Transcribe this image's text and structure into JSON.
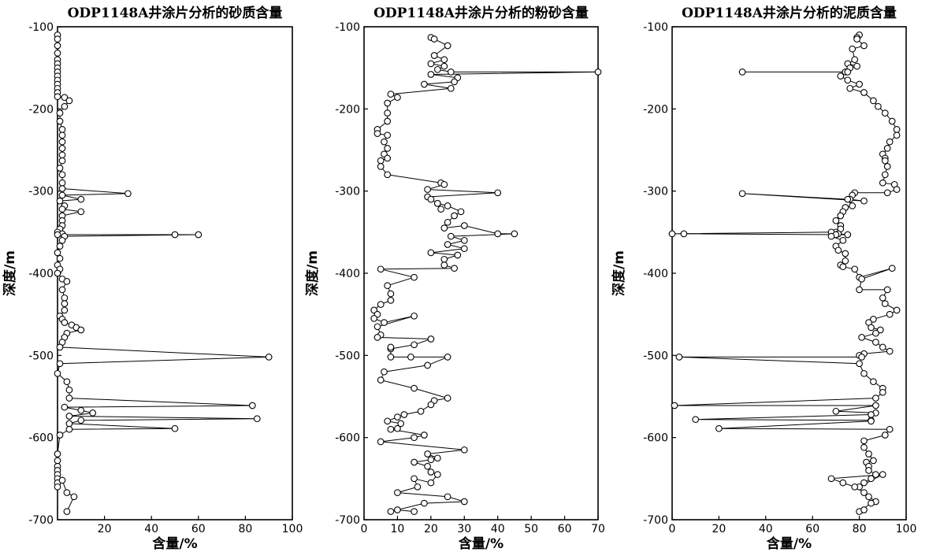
{
  "chart_data": [
    {
      "type": "line",
      "title": "ODP1148A井涂片分析的砂质含量",
      "xlabel": "含量/%",
      "ylabel": "深度/m",
      "xlim": [
        0,
        100
      ],
      "ylim": [
        -100,
        -700
      ],
      "xticks": [
        20,
        40,
        60,
        80,
        100
      ],
      "yticks": [
        -100,
        -200,
        -300,
        -400,
        -500,
        -600,
        -700
      ],
      "grid": false,
      "series": [
        {
          "x": [
            0,
            0,
            0,
            0,
            0,
            0,
            0,
            0,
            0,
            0,
            0,
            0,
            0,
            0,
            3,
            5,
            3,
            1,
            1,
            2,
            2,
            2,
            2,
            2,
            2,
            1,
            2,
            2,
            2,
            30,
            2,
            10,
            1,
            3,
            2,
            10,
            2,
            2,
            2,
            1,
            0,
            2,
            0,
            50,
            60,
            3,
            2,
            1,
            0,
            1,
            0,
            1,
            0,
            2,
            4,
            2,
            3,
            3,
            3,
            1,
            2,
            3,
            6,
            8,
            10,
            4,
            3,
            2,
            1,
            90,
            1,
            0,
            4,
            5,
            5,
            83,
            3,
            10,
            15,
            5,
            85,
            10,
            5,
            50,
            5,
            1,
            0,
            0,
            0,
            0,
            0,
            0,
            0,
            0,
            2,
            4,
            7,
            4
          ],
          "y": [
            -110,
            -115,
            -123,
            -132,
            -140,
            -145,
            -150,
            -155,
            -160,
            -165,
            -170,
            -175,
            -180,
            -185,
            -186,
            -190,
            -197,
            -205,
            -215,
            -225,
            -232,
            -240,
            -248,
            -256,
            -263,
            -272,
            -280,
            -290,
            -297,
            -303,
            -305,
            -310,
            -312,
            -318,
            -322,
            -325,
            -330,
            -336,
            -342,
            -346,
            -350,
            -352,
            -353,
            -353,
            -353,
            -355,
            -360,
            -367,
            -375,
            -382,
            -390,
            -395,
            -400,
            -407,
            -410,
            -420,
            -430,
            -437,
            -445,
            -452,
            -456,
            -460,
            -463,
            -466,
            -469,
            -473,
            -478,
            -484,
            -490,
            -502,
            -510,
            -522,
            -532,
            -542,
            -552,
            -561,
            -563,
            -567,
            -570,
            -574,
            -577,
            -579,
            -583,
            -589,
            -590,
            -597,
            -620,
            -628,
            -635,
            -640,
            -645,
            -650,
            -655,
            -660,
            -652,
            -667,
            -672,
            -690
          ]
        }
      ]
    },
    {
      "type": "line",
      "title": "ODP1148A井涂片分析的粉砂含量",
      "xlabel": "含量/%",
      "ylabel": "",
      "xlim": [
        0,
        70
      ],
      "ylim": [
        -100,
        -700
      ],
      "xticks": [
        0,
        10,
        20,
        30,
        40,
        50,
        60,
        70
      ],
      "yticks": [
        -100,
        -200,
        -300,
        -400,
        -500,
        -600,
        -700
      ],
      "grid": false,
      "series": [
        {
          "x": [
            20,
            21,
            25,
            21,
            24,
            20,
            24,
            22,
            26,
            70,
            20,
            28,
            27,
            18,
            26,
            8,
            10,
            7,
            7,
            7,
            4,
            4,
            7,
            6,
            7,
            6,
            7,
            5,
            5,
            7,
            23,
            24,
            19,
            40,
            19,
            20,
            22,
            23,
            22,
            25,
            29,
            27,
            25,
            24,
            30,
            40,
            45,
            26,
            30,
            25,
            30,
            20,
            28,
            24,
            24,
            27,
            5,
            15,
            7,
            8,
            8,
            5,
            3,
            4,
            3,
            6,
            15,
            4,
            5,
            4,
            20,
            15,
            8,
            8,
            8,
            14,
            25,
            19,
            6,
            5,
            15,
            25,
            21,
            20,
            17,
            12,
            10,
            7,
            11,
            10,
            8,
            18,
            15,
            5,
            30,
            19,
            22,
            20,
            15,
            19,
            20,
            22,
            20,
            15,
            16,
            10,
            25,
            30,
            18,
            8,
            10,
            15
          ],
          "y": [
            -113,
            -115,
            -123,
            -135,
            -140,
            -145,
            -148,
            -152,
            -155,
            -155,
            -158,
            -162,
            -167,
            -170,
            -175,
            -182,
            -186,
            -193,
            -205,
            -215,
            -225,
            -230,
            -232,
            -240,
            -248,
            -255,
            -260,
            -263,
            -270,
            -280,
            -290,
            -292,
            -298,
            -302,
            -307,
            -310,
            -315,
            -322,
            -315,
            -318,
            -325,
            -330,
            -338,
            -345,
            -342,
            -352,
            -352,
            -355,
            -360,
            -365,
            -370,
            -375,
            -378,
            -383,
            -390,
            -394,
            -395,
            -405,
            -415,
            -425,
            -433,
            -438,
            -445,
            -450,
            -455,
            -460,
            -452,
            -465,
            -475,
            -478,
            -480,
            -487,
            -492,
            -490,
            -502,
            -502,
            -502,
            -512,
            -520,
            -530,
            -540,
            -552,
            -555,
            -560,
            -568,
            -572,
            -575,
            -580,
            -583,
            -589,
            -590,
            -597,
            -600,
            -605,
            -615,
            -620,
            -625,
            -627,
            -630,
            -635,
            -642,
            -645,
            -655,
            -650,
            -660,
            -667,
            -672,
            -678,
            -680,
            -690,
            -688,
            -690
          ]
        }
      ]
    },
    {
      "type": "line",
      "title": "ODP1148A井涂片分析的泥质含量",
      "xlabel": "含量/%",
      "ylabel": "",
      "xlim": [
        0,
        100
      ],
      "ylim": [
        -100,
        -700
      ],
      "xticks": [
        0,
        20,
        40,
        60,
        80,
        100
      ],
      "yticks": [
        -100,
        -200,
        -300,
        -400,
        -500,
        -600,
        -700
      ],
      "grid": false,
      "series": [
        {
          "x": [
            80,
            79,
            79,
            82,
            77,
            78,
            75,
            79,
            76,
            74,
            30,
            75,
            72,
            75,
            80,
            76,
            82,
            86,
            88,
            91,
            94,
            96,
            96,
            93,
            92,
            90,
            91,
            91,
            92,
            91,
            90,
            95,
            96,
            92,
            78,
            77,
            76,
            82,
            30,
            75,
            77,
            74,
            73,
            72,
            70,
            72,
            72,
            70,
            71,
            75,
            69,
            68,
            0,
            5,
            70,
            68,
            73,
            70,
            71,
            74,
            74,
            72,
            73,
            78,
            80,
            94,
            81,
            80,
            92,
            90,
            91,
            96,
            93,
            86,
            84,
            85,
            89,
            87,
            81,
            87,
            90,
            93,
            82,
            80,
            81,
            3,
            80,
            82,
            86,
            90,
            90,
            87,
            1,
            87,
            70,
            87,
            85,
            10,
            85,
            85,
            20,
            93,
            91,
            82,
            82,
            84,
            86,
            83,
            84,
            84,
            87,
            85,
            82,
            80,
            90,
            68,
            73,
            78,
            82,
            84,
            87,
            85,
            80,
            82
          ],
          "y": [
            -110,
            -113,
            -115,
            -123,
            -127,
            -140,
            -145,
            -148,
            -150,
            -155,
            -155,
            -155,
            -160,
            -165,
            -170,
            -175,
            -180,
            -190,
            -197,
            -205,
            -215,
            -225,
            -232,
            -240,
            -248,
            -255,
            -260,
            -263,
            -270,
            -280,
            -290,
            -292,
            -298,
            -302,
            -302,
            -305,
            -310,
            -312,
            -303,
            -310,
            -318,
            -320,
            -325,
            -330,
            -336,
            -342,
            -346,
            -350,
            -352,
            -353,
            -353,
            -350,
            -352,
            -352,
            -353,
            -355,
            -360,
            -367,
            -372,
            -376,
            -385,
            -390,
            -392,
            -395,
            -405,
            -394,
            -407,
            -420,
            -420,
            -430,
            -437,
            -445,
            -450,
            -456,
            -460,
            -466,
            -469,
            -473,
            -478,
            -484,
            -490,
            -495,
            -498,
            -500,
            -502,
            -502,
            -510,
            -522,
            -532,
            -540,
            -545,
            -552,
            -561,
            -561,
            -568,
            -570,
            -572,
            -578,
            -579,
            -580,
            -589,
            -590,
            -597,
            -604,
            -612,
            -620,
            -628,
            -630,
            -635,
            -640,
            -645,
            -650,
            -655,
            -660,
            -645,
            -650,
            -655,
            -660,
            -667,
            -672,
            -678,
            -680,
            -690,
            -688
          ]
        }
      ]
    }
  ]
}
